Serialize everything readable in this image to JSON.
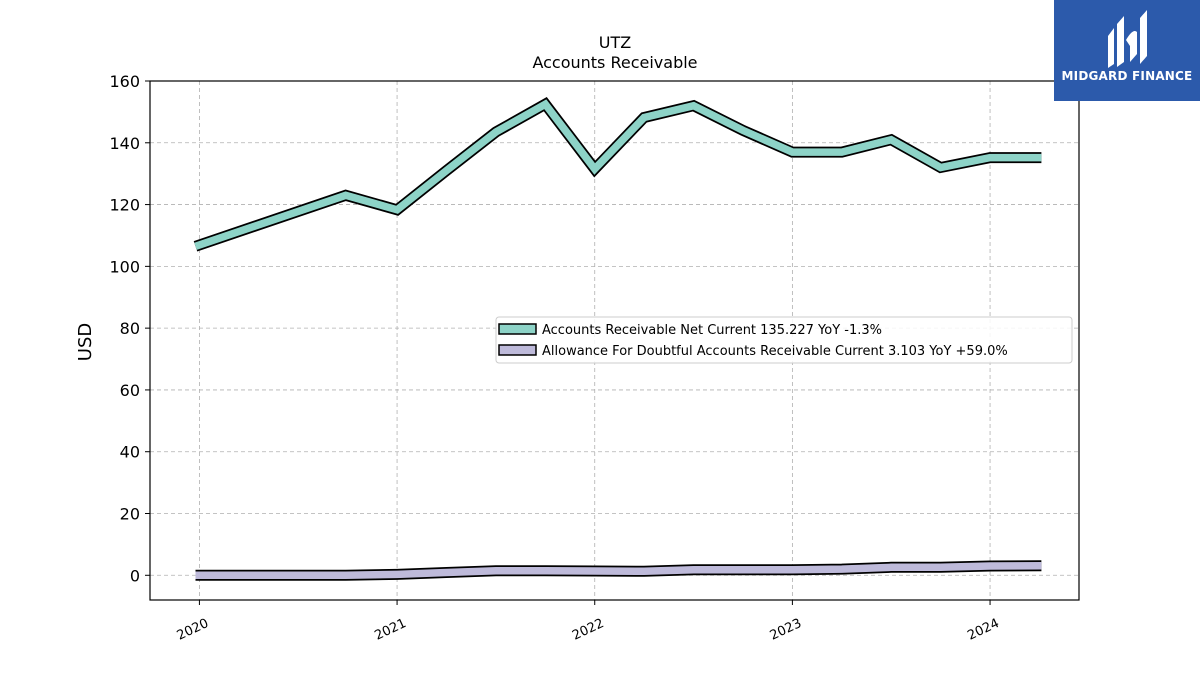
{
  "logo": {
    "text": "MIDGARD FINANCE",
    "icon": "midgard-logo-mark",
    "background": "#2c5aab"
  },
  "chart_data": {
    "type": "line",
    "title": "UTZ",
    "subtitle": "Accounts Receivable",
    "ylabel": "USD",
    "xlabel": "",
    "ylim": [
      -8,
      160
    ],
    "xlim": [
      2019.75,
      2024.45
    ],
    "yticks": [
      0,
      20,
      40,
      60,
      80,
      100,
      120,
      140,
      160
    ],
    "xticks": [
      {
        "value": 2020,
        "label": "2020"
      },
      {
        "value": 2021,
        "label": "2021"
      },
      {
        "value": 2022,
        "label": "2022"
      },
      {
        "value": 2023,
        "label": "2023"
      },
      {
        "value": 2024,
        "label": "2024"
      }
    ],
    "grid": true,
    "legend_position": "center-right",
    "series": [
      {
        "name": "Accounts Receivable Net Current  135.227 YoY -1.3%",
        "color": "#8dd3c7",
        "x": [
          2019.98,
          2020.74,
          2021.0,
          2021.25,
          2021.5,
          2021.75,
          2022.0,
          2022.25,
          2022.5,
          2022.75,
          2023.0,
          2023.25,
          2023.5,
          2023.75,
          2024.0,
          2024.26
        ],
        "values": [
          106.5,
          123.0,
          118.3,
          131.0,
          143.5,
          152.5,
          131.5,
          148.2,
          152.0,
          144.0,
          137.0,
          137.0,
          141.0,
          132.0,
          135.2,
          135.2
        ]
      },
      {
        "name": "Allowance For Doubtful Accounts Receivable Current  3.103 YoY +59.0%",
        "color": "#bebada",
        "x": [
          2019.98,
          2020.74,
          2021.0,
          2021.25,
          2021.5,
          2021.75,
          2022.0,
          2022.25,
          2022.5,
          2022.75,
          2023.0,
          2023.25,
          2023.5,
          2023.75,
          2024.0,
          2024.26
        ],
        "values": [
          0.0,
          0.0,
          0.3,
          0.9,
          1.5,
          1.5,
          1.4,
          1.3,
          1.8,
          1.8,
          1.8,
          2.0,
          2.6,
          2.6,
          3.0,
          3.1
        ]
      }
    ]
  }
}
